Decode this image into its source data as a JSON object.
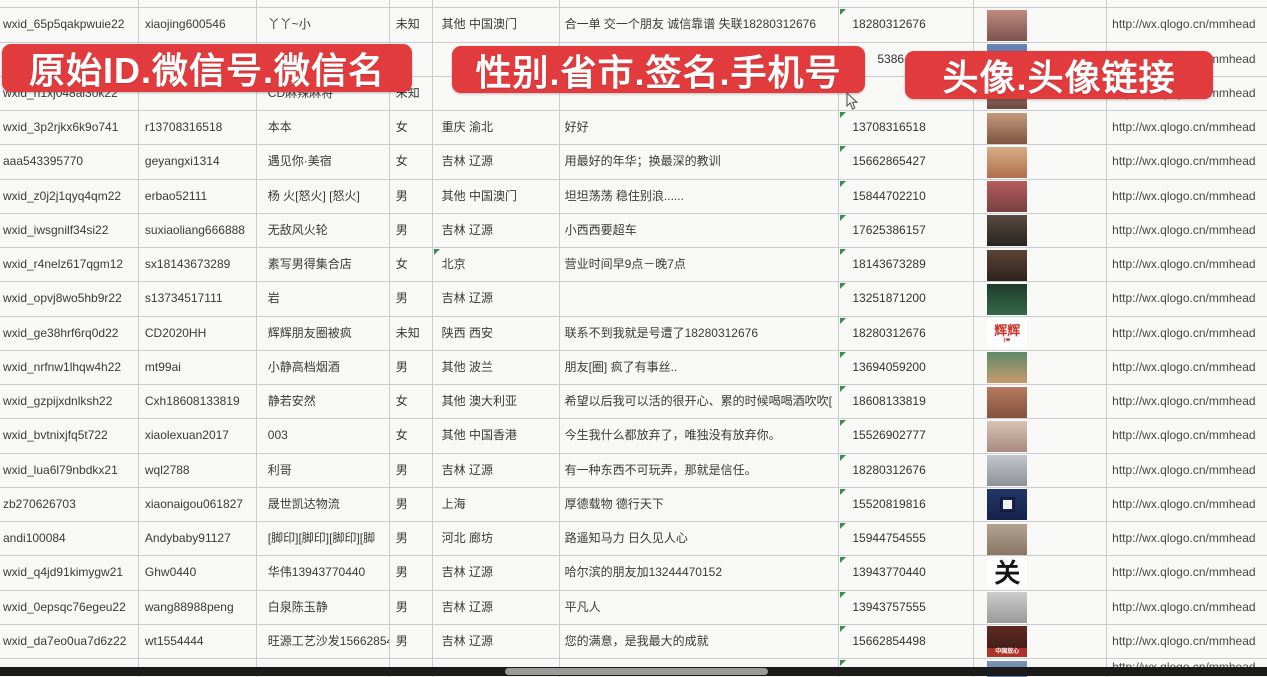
{
  "banners": [
    {
      "label": "原始ID.微信号.微信名"
    },
    {
      "label": "性别.省市.签名.手机号"
    },
    {
      "label": "头像.头像链接"
    }
  ],
  "colors": {
    "banner_red": "#e23b3d",
    "gridline": "#c9cdd1",
    "error_triangle_green": "#3a8e4a",
    "scrollbar_track": "#1b1b1b",
    "scrollbar_thumb": "#9a9a9a"
  },
  "columns": [
    "原始ID",
    "微信号",
    "微信名",
    "性别",
    "省市",
    "签名",
    "手机号",
    "头像",
    "头像链接"
  ],
  "rows": [
    {
      "original_id": "wxid_65p5qakpwuie22",
      "wechat_id": "xiaojing600546",
      "nickname": "丫丫~小",
      "gender": "未知",
      "region": "其他 中国澳门",
      "signature": "合一单 交一个朋友 诚信靠谱 失联18280312676",
      "phone": "18280312676",
      "avatar": {
        "kind": "photo",
        "c1": "#c08a80",
        "c2": "#7c524e",
        "desc": "woman-portrait"
      },
      "avatar_link": "http://wx.qlogo.cn/mmhead"
    },
    {
      "original_id": "",
      "wechat_id": "",
      "nickname": "",
      "gender": "",
      "region": "",
      "signature": "",
      "phone": "5386",
      "phone_indent": true,
      "no_triangle": true,
      "avatar": {
        "kind": "photo",
        "c1": "#6b86b8",
        "c2": "#46598a",
        "desc": "hidden-behind-banner"
      },
      "avatar_link": "http://wx.qlogo.cn/mmhead"
    },
    {
      "original_id": "wxid_h1xj048al3ok22",
      "wechat_id": "",
      "nickname": "CD麻辣麻将",
      "gender": "未知",
      "region": "",
      "signature": "",
      "phone": "",
      "avatar": {
        "kind": "photo",
        "c1": "#b08a78",
        "c2": "#6e4a42",
        "desc": "woman-portrait"
      },
      "avatar_link": "http://wx.qlogo.cn/mmhead"
    },
    {
      "original_id": "wxid_3p2rjkx6k9o741",
      "wechat_id": "r13708316518",
      "nickname": "本本",
      "gender": "女",
      "region": "重庆 渝北",
      "signature": "好好",
      "phone": "13708316518",
      "avatar": {
        "kind": "photo",
        "c1": "#c49a7c",
        "c2": "#7e5440",
        "desc": "woman-long-hair"
      },
      "avatar_link": "http://wx.qlogo.cn/mmhead"
    },
    {
      "original_id": "aaa543395770",
      "wechat_id": "geyangxi1314",
      "nickname": "遇见你·美宿",
      "gender": "女",
      "region": "吉林 辽源",
      "signature": "用最好的年华；换最深的教训",
      "phone": "15662865427",
      "avatar": {
        "kind": "photo",
        "c1": "#d8ae85",
        "c2": "#b06e4c",
        "desc": "hands-flowers"
      },
      "avatar_link": "http://wx.qlogo.cn/mmhead"
    },
    {
      "original_id": "wxid_z0j2j1qyq4qm22",
      "wechat_id": "erbao52111",
      "nickname": "杨 火[怒火] [怒火]",
      "gender": "男",
      "region": "其他 中国澳门",
      "signature": "坦坦荡荡 稳住别浪......",
      "phone": "15844702210",
      "avatar": {
        "kind": "photo",
        "c1": "#b85c5c",
        "c2": "#77403f",
        "desc": "colorful-group"
      },
      "avatar_link": "http://wx.qlogo.cn/mmhead"
    },
    {
      "original_id": "wxid_iwsgnilf34si22",
      "wechat_id": "suxiaoliang666888",
      "nickname": "无敌风火轮",
      "gender": "男",
      "region": "吉林 辽源",
      "signature": "小西西要超车",
      "phone": "17625386157",
      "avatar": {
        "kind": "photo",
        "c1": "#584a40",
        "c2": "#2a2420",
        "desc": "child-in-car"
      },
      "avatar_link": "http://wx.qlogo.cn/mmhead"
    },
    {
      "original_id": "wxid_r4nelz617qgm12",
      "wechat_id": "sx18143673289",
      "nickname": "素写男得集合店",
      "gender": "女",
      "region": "北京",
      "region_flag": true,
      "signature": "营业时间早9点－晚7点",
      "phone": "18143673289",
      "avatar": {
        "kind": "photo",
        "c1": "#5a4438",
        "c2": "#2e211c",
        "desc": "dark-storefront"
      },
      "avatar_link": "http://wx.qlogo.cn/mmhead"
    },
    {
      "original_id": "wxid_opvj8wo5hb9r22",
      "wechat_id": "s13734517111",
      "nickname": "岩",
      "gender": "男",
      "region": "吉林 辽源",
      "signature": "",
      "phone": "13251871200",
      "avatar": {
        "kind": "photo",
        "c1": "#1e3c2c",
        "c2": "#35684a",
        "desc": "green-poster"
      },
      "avatar_link": "http://wx.qlogo.cn/mmhead"
    },
    {
      "original_id": "wxid_ge38hrf6rq0d22",
      "wechat_id": "CD2020HH",
      "nickname": "辉辉朋友圈被疯",
      "gender": "未知",
      "region": "陕西 西安",
      "signature": "联系不到我就是号遭了18280312676",
      "phone": "18280312676",
      "avatar": {
        "kind": "text",
        "text": "辉辉",
        "sub": "I❤",
        "color": "#d0342c",
        "size": 13,
        "desc": "red-text-on-white"
      },
      "avatar_link": "http://wx.qlogo.cn/mmhead"
    },
    {
      "original_id": "wxid_nrfnw1lhqw4h22",
      "wechat_id": "mt99ai",
      "nickname": "小静高档烟酒",
      "gender": "男",
      "region": "其他 波兰",
      "signature": "朋友[圈] 疯了有事丝..",
      "phone": "13694059200",
      "avatar": {
        "kind": "photo",
        "c1": "#5f8a6a",
        "c2": "#c79a6e",
        "desc": "woman-sunglasses"
      },
      "avatar_link": "http://wx.qlogo.cn/mmhead"
    },
    {
      "original_id": "wxid_gzpijxdnlksh22",
      "wechat_id": "Cxh18608133819",
      "nickname": "静若安然",
      "gender": "女",
      "region": "其他 澳大利亚",
      "signature": "希望以后我可以活的很开心、累的时候喝喝酒吹吹[",
      "phone": "18608133819",
      "avatar": {
        "kind": "photo",
        "c1": "#b57a60",
        "c2": "#84513f",
        "desc": "woman-selfie"
      },
      "avatar_link": "http://wx.qlogo.cn/mmhead"
    },
    {
      "original_id": "wxid_bvtnixjfq5t722",
      "wechat_id": "xiaolexuan2017",
      "nickname": "003",
      "gender": "女",
      "region": "其他 中国香港",
      "signature": "今生我什么都放弃了，唯独没有放弃你。",
      "phone": "15526902777",
      "avatar": {
        "kind": "photo",
        "c1": "#d9c3b6",
        "c2": "#a98a7e",
        "desc": "woman-selfie-pale"
      },
      "avatar_link": "http://wx.qlogo.cn/mmhead"
    },
    {
      "original_id": "wxid_lua6l79nbdkx21",
      "wechat_id": "wql2788",
      "nickname": "利哥",
      "gender": "男",
      "region": "吉林 辽源",
      "signature": "有一种东西不可玩弄，那就是信任。",
      "phone": "18280312676",
      "avatar": {
        "kind": "photo",
        "c1": "#c2c6ca",
        "c2": "#8d9296",
        "desc": "winter-outdoor-person"
      },
      "avatar_link": "http://wx.qlogo.cn/mmhead"
    },
    {
      "original_id": "zb270626703",
      "wechat_id": "xiaonaigou061827",
      "nickname": "晟世凯达物流",
      "gender": "男",
      "region": "上海",
      "signature": "厚德载物 德行天下",
      "phone": "15520819816",
      "avatar": {
        "kind": "photo",
        "c1": "#233668",
        "c2": "#16244a",
        "qr": true,
        "desc": "blue-qr-code"
      },
      "avatar_link": "http://wx.qlogo.cn/mmhead"
    },
    {
      "original_id": "andi100084",
      "wechat_id": "Andybaby91127",
      "nickname": "[脚印][脚印][脚印][脚",
      "gender": "男",
      "region": "河北 廊坊",
      "signature": "路遥知马力 日久见人心",
      "phone": "15944754555",
      "avatar": {
        "kind": "photo",
        "c1": "#b3a492",
        "c2": "#877663",
        "desc": "outdoor-person"
      },
      "avatar_link": "http://wx.qlogo.cn/mmhead"
    },
    {
      "original_id": "wxid_q4jd91kimygw21",
      "wechat_id": "Ghw0440",
      "nickname": "华伟13943770440",
      "gender": "男",
      "region": "吉林 辽源",
      "signature": "哈尔滨的朋友加13244470152",
      "phone": "13943770440",
      "avatar": {
        "kind": "text",
        "text": "关",
        "color": "#151515",
        "size": 26,
        "desc": "black-calligraphy"
      },
      "avatar_link": "http://wx.qlogo.cn/mmhead"
    },
    {
      "original_id": "wxid_0epsqc76egeu22",
      "wechat_id": "wang88988peng",
      "nickname": "白泉陈玉静",
      "gender": "男",
      "region": "吉林 辽源",
      "signature": "平凡人",
      "phone": "13943757555",
      "avatar": {
        "kind": "photo",
        "c1": "#cccccc",
        "c2": "#9a9a9a",
        "desc": "gray-photo-person"
      },
      "avatar_link": "http://wx.qlogo.cn/mmhead"
    },
    {
      "original_id": "wxid_da7eo0ua7d6z22",
      "wechat_id": "wt1554444",
      "nickname": "旺源工艺沙发15662854",
      "gender": "男",
      "region": "吉林 辽源",
      "signature": "您的满意，是我最大的成就",
      "phone": "15662854498",
      "avatar": {
        "kind": "photo",
        "c1": "#5e2a22",
        "c2": "#3a1a16",
        "band": {
          "color": "#b03226",
          "text": "中国放心"
        },
        "desc": "dark-red-furniture"
      },
      "avatar_link": "http://wx.qlogo.cn/mmhead"
    },
    {
      "original_id": "",
      "wechat_id": "",
      "nickname": "",
      "gender": "",
      "region": "",
      "signature": "",
      "phone": "",
      "partial": true,
      "avatar": {
        "kind": "photo",
        "c1": "#7a96b5",
        "c2": "#54688a",
        "desc": "partially-cut-row"
      },
      "avatar_link": "http://wx.qlogo.cn/mmhead"
    }
  ]
}
